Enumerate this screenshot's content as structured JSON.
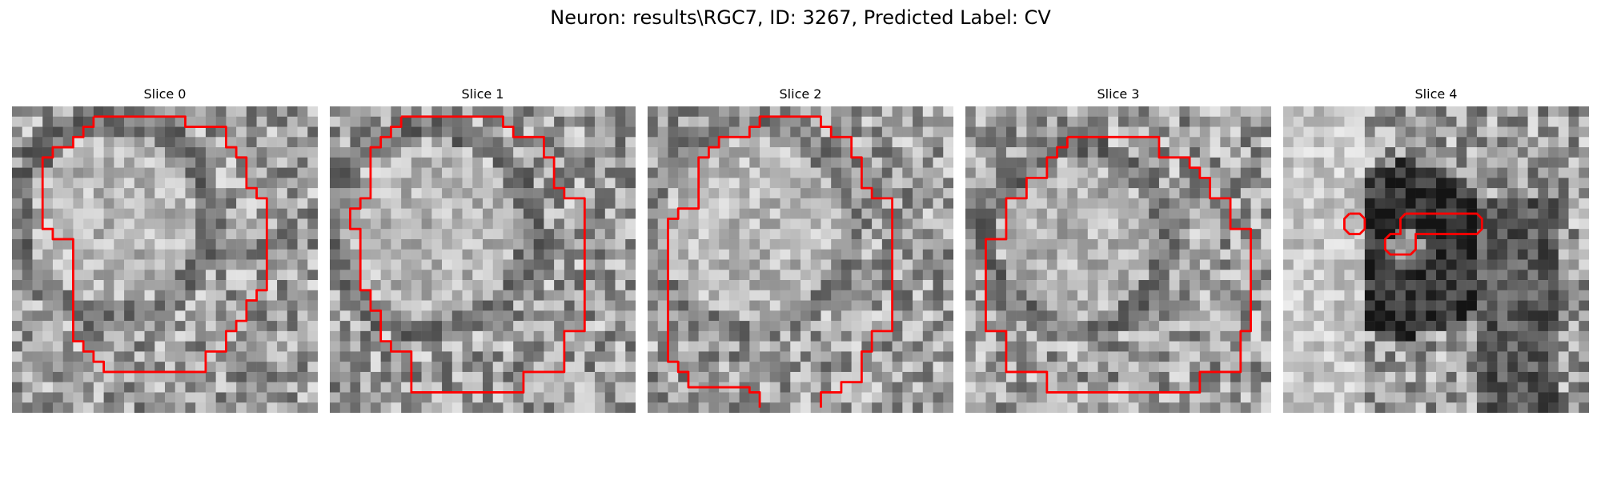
{
  "figure": {
    "title": "Neuron: results\\RGC7, ID: 3267, Predicted Label: CV"
  },
  "colors": {
    "background": "#ffffff",
    "contour": "#ff0000",
    "image_colormap": "gray"
  },
  "slices": [
    {
      "title": "Slice 0",
      "seed": 11,
      "contour_shape": "rounded-octagon"
    },
    {
      "title": "Slice 1",
      "seed": 23,
      "contour_shape": "rounded-octagon"
    },
    {
      "title": "Slice 2",
      "seed": 37,
      "contour_shape": "open-octagon"
    },
    {
      "title": "Slice 3",
      "seed": 51,
      "contour_shape": "rounded-octagon"
    },
    {
      "title": "Slice 4",
      "seed": 67,
      "contour_shape": "two-small-blobs"
    }
  ]
}
